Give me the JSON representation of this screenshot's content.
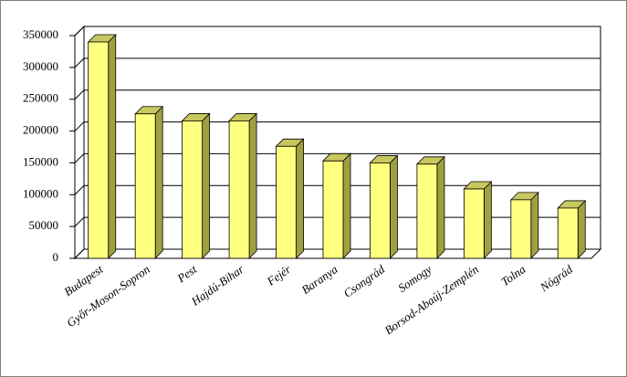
{
  "chart_data": {
    "type": "bar3d",
    "categories": [
      "Budapest",
      "Győr-Moson-Sopron",
      "Pest",
      "Hajdú-Bihar",
      "Fejér",
      "Baranya",
      "Csongrád",
      "Somogy",
      "Borsod-Abaúj-Zemplén",
      "Tolna",
      "Nógrád"
    ],
    "values": [
      340000,
      227000,
      216000,
      216000,
      176000,
      153000,
      150000,
      148000,
      109000,
      92000,
      79000
    ],
    "color": "#ffff80",
    "ylim": [
      0,
      350000
    ],
    "yticks": [
      0,
      50000,
      100000,
      150000,
      200000,
      250000,
      300000,
      350000
    ],
    "grid": true
  }
}
